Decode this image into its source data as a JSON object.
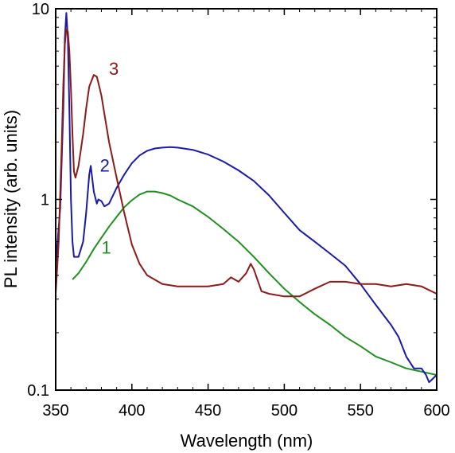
{
  "chart_data": {
    "type": "line",
    "title": "",
    "xlabel": "Wavelength (nm)",
    "ylabel": "PL intensity (arb. units)",
    "xlim": [
      350,
      600
    ],
    "ylim": [
      0.1,
      10
    ],
    "yscale": "log",
    "grid": false,
    "legend": "none",
    "x_ticks": [
      350,
      400,
      450,
      500,
      550,
      600
    ],
    "x_tick_labels": [
      "350",
      "400",
      "450",
      "500",
      "550",
      "600"
    ],
    "y_ticks": [
      0.1,
      1,
      10
    ],
    "y_tick_labels": [
      "0.1",
      "1",
      "10"
    ],
    "series": [
      {
        "name": "1",
        "color": "#1f8f1f",
        "x": [
          361,
          365,
          370,
          375,
          380,
          385,
          390,
          395,
          400,
          405,
          410,
          415,
          420,
          425,
          430,
          440,
          450,
          460,
          470,
          480,
          490,
          500,
          510,
          520,
          530,
          540,
          550,
          560,
          570,
          580,
          590,
          600
        ],
        "y": [
          0.38,
          0.41,
          0.47,
          0.55,
          0.63,
          0.72,
          0.81,
          0.91,
          0.99,
          1.06,
          1.1,
          1.1,
          1.08,
          1.05,
          1.0,
          0.92,
          0.81,
          0.7,
          0.6,
          0.5,
          0.41,
          0.34,
          0.29,
          0.25,
          0.22,
          0.19,
          0.17,
          0.15,
          0.14,
          0.13,
          0.125,
          0.12
        ]
      },
      {
        "name": "2",
        "color": "#1a1aa6",
        "x": [
          350,
          353,
          355,
          356,
          357,
          358,
          359,
          360,
          361,
          362,
          365,
          368,
          370,
          372,
          373,
          375,
          377,
          378,
          380,
          382,
          385,
          390,
          395,
          400,
          405,
          410,
          415,
          420,
          425,
          430,
          440,
          450,
          460,
          470,
          480,
          490,
          500,
          510,
          520,
          530,
          540,
          550,
          560,
          570,
          575,
          580,
          585,
          590,
          593,
          595,
          600
        ],
        "y": [
          0.45,
          0.9,
          3.0,
          7.0,
          9.5,
          7.0,
          3.0,
          1.0,
          0.6,
          0.5,
          0.5,
          0.6,
          0.85,
          1.35,
          1.5,
          1.1,
          0.95,
          1.0,
          0.98,
          0.92,
          0.95,
          1.15,
          1.35,
          1.55,
          1.7,
          1.8,
          1.85,
          1.87,
          1.88,
          1.87,
          1.82,
          1.72,
          1.58,
          1.42,
          1.25,
          1.05,
          0.85,
          0.69,
          0.6,
          0.52,
          0.45,
          0.36,
          0.28,
          0.22,
          0.19,
          0.15,
          0.13,
          0.13,
          0.12,
          0.11,
          0.12
        ]
      },
      {
        "name": "3",
        "color": "#8b1a1a",
        "x": [
          350,
          352,
          354,
          355,
          356,
          357,
          358,
          359,
          360,
          361,
          362,
          363,
          365,
          368,
          370,
          372,
          375,
          377,
          378,
          380,
          382,
          385,
          390,
          395,
          400,
          405,
          410,
          420,
          430,
          440,
          450,
          460,
          465,
          470,
          475,
          478,
          480,
          485,
          490,
          500,
          510,
          520,
          530,
          540,
          550,
          560,
          570,
          580,
          590,
          600
        ],
        "y": [
          0.32,
          0.6,
          2.0,
          4.0,
          6.5,
          7.8,
          7.6,
          6.0,
          3.8,
          2.2,
          1.4,
          1.3,
          1.5,
          2.2,
          3.0,
          3.9,
          4.5,
          4.4,
          4.1,
          3.5,
          2.8,
          2.0,
          1.3,
          0.85,
          0.58,
          0.46,
          0.4,
          0.36,
          0.35,
          0.35,
          0.35,
          0.36,
          0.39,
          0.37,
          0.41,
          0.46,
          0.43,
          0.33,
          0.32,
          0.31,
          0.31,
          0.34,
          0.37,
          0.37,
          0.36,
          0.36,
          0.35,
          0.36,
          0.35,
          0.32
        ]
      }
    ],
    "series_labels": [
      {
        "text": "1",
        "x": 380,
        "y": 0.52
      },
      {
        "text": "2",
        "x": 379,
        "y": 1.4
      },
      {
        "text": "3",
        "x": 385,
        "y": 4.5
      }
    ]
  }
}
